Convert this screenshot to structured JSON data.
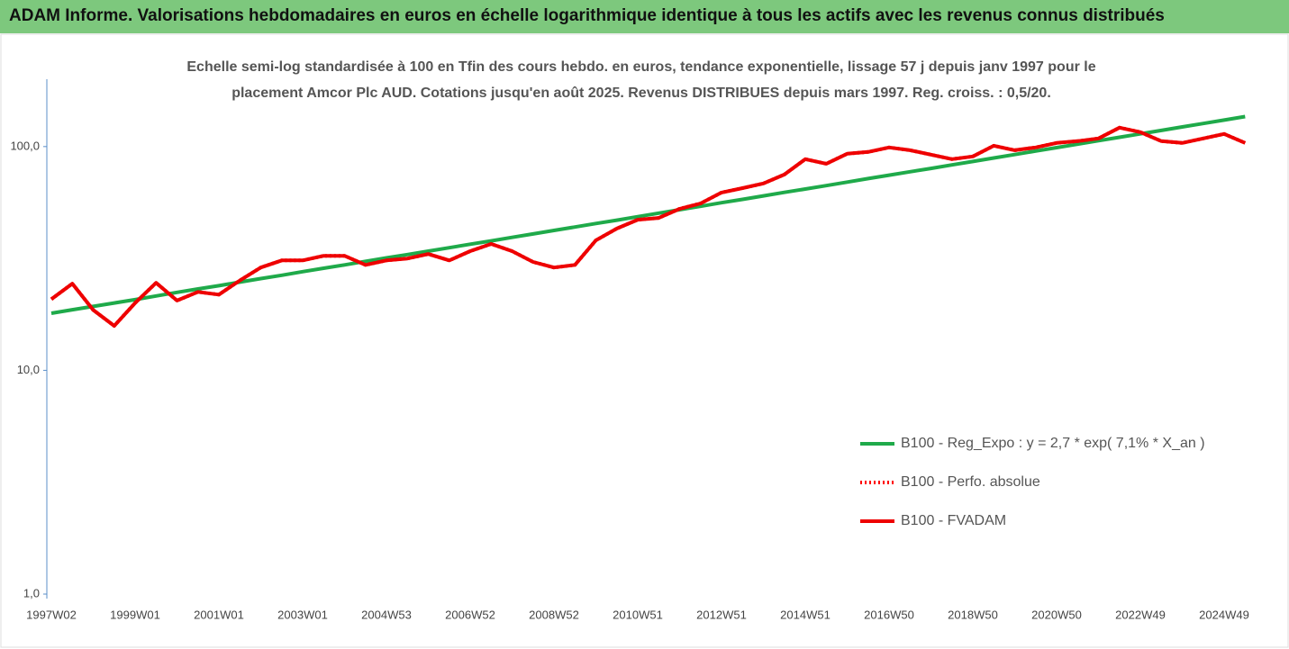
{
  "chart_data": {
    "type": "line",
    "title": "ADAM Informe. Valorisations hebdomadaires en euros en échelle logarithmique identique à tous les actifs avec les revenus connus distribués",
    "subtitle": [
      "Echelle semi-log standardisée à 100 en Tfin des cours hebdo. en euros, tendance exponentielle, lissage 57 j depuis janv 1997 pour le",
      "placement Amcor Plc AUD. Cotations jusqu'en août 2025. Revenus DISTRIBUES depuis mars 1997. Reg. croiss. : 0,5/20."
    ],
    "categories": [
      "1997W02",
      null,
      null,
      null,
      "1999W01",
      null,
      null,
      null,
      "2001W01",
      null,
      null,
      null,
      "2003W01",
      null,
      null,
      null,
      "2004W53",
      null,
      null,
      null,
      "2006W52",
      null,
      null,
      null,
      "2008W52",
      null,
      null,
      null,
      "2010W51",
      null,
      null,
      null,
      "2012W51",
      null,
      null,
      null,
      "2014W51",
      null,
      null,
      null,
      "2016W50",
      null,
      null,
      null,
      "2018W50",
      null,
      null,
      null,
      "2020W50",
      null,
      null,
      null,
      "2022W49",
      null,
      null,
      null,
      "2024W49",
      null
    ],
    "series": [
      {
        "name": "B100 - Reg_Expo : y = 2,7 * exp( 7,1% *  X_an )",
        "color": "#1faa4a",
        "dash": "solid",
        "values": [
          18.0,
          18.65,
          19.3,
          20.0,
          20.7,
          21.5,
          22.3,
          23.1,
          23.9,
          24.8,
          25.7,
          26.6,
          27.6,
          28.6,
          29.6,
          30.7,
          31.8,
          32.9,
          34.1,
          35.3,
          36.6,
          37.9,
          39.3,
          40.7,
          42.2,
          43.7,
          45.3,
          46.9,
          48.6,
          50.4,
          52.2,
          54.1,
          56.1,
          58.1,
          60.2,
          62.4,
          64.6,
          66.9,
          69.4,
          71.9,
          74.5,
          77.2,
          79.9,
          82.8,
          85.8,
          88.9,
          92.1,
          95.5,
          98.9,
          102.5,
          106.2,
          110.0,
          114.0,
          118.1,
          122.4,
          126.8,
          131.4,
          136.2
        ]
      },
      {
        "name": "B100 - Perfo. absolue",
        "color": "#ff0000",
        "dash": "dotted",
        "values": [
          20.8,
          24.4,
          18.6,
          15.8,
          20.0,
          24.6,
          20.5,
          22.4,
          21.8,
          25.2,
          28.8,
          31.0,
          31.0,
          32.5,
          32.5,
          29.6,
          31.0,
          31.6,
          33.1,
          31.0,
          34.1,
          36.7,
          34.1,
          30.5,
          28.8,
          29.6,
          38.1,
          43.0,
          47.1,
          48.0,
          52.7,
          55.7,
          62.3,
          65.2,
          68.4,
          75.0,
          87.9,
          83.8,
          92.9,
          94.6,
          99.1,
          96.3,
          92.0,
          87.9,
          90.3,
          100.9,
          96.3,
          99.1,
          103.8,
          105.7,
          108.7,
          121.5,
          116.0,
          105.7,
          103.8,
          108.7,
          113.9,
          103.8
        ]
      },
      {
        "name": "B100 - FVADAM",
        "color": "#ee0000",
        "dash": "solid",
        "values": [
          20.8,
          24.4,
          18.6,
          15.8,
          20.0,
          24.6,
          20.5,
          22.4,
          21.8,
          25.2,
          28.8,
          31.0,
          31.0,
          32.5,
          32.5,
          29.6,
          31.0,
          31.6,
          33.1,
          31.0,
          34.1,
          36.7,
          34.1,
          30.5,
          28.8,
          29.6,
          38.1,
          43.0,
          47.1,
          48.0,
          52.7,
          55.7,
          62.3,
          65.2,
          68.4,
          75.0,
          87.9,
          83.8,
          92.9,
          94.6,
          99.1,
          96.3,
          92.0,
          87.9,
          90.3,
          100.9,
          96.3,
          99.1,
          103.8,
          105.7,
          108.7,
          121.5,
          116.0,
          105.7,
          103.8,
          108.7,
          113.9,
          103.8
        ]
      }
    ],
    "ylim": [
      1,
      200
    ],
    "log_scale_y": true,
    "yticks": [
      {
        "value": 1,
        "label": "1,0"
      },
      {
        "value": 10,
        "label": "10,0"
      },
      {
        "value": 100,
        "label": "100,0"
      }
    ],
    "grid": false,
    "legend": "right"
  }
}
